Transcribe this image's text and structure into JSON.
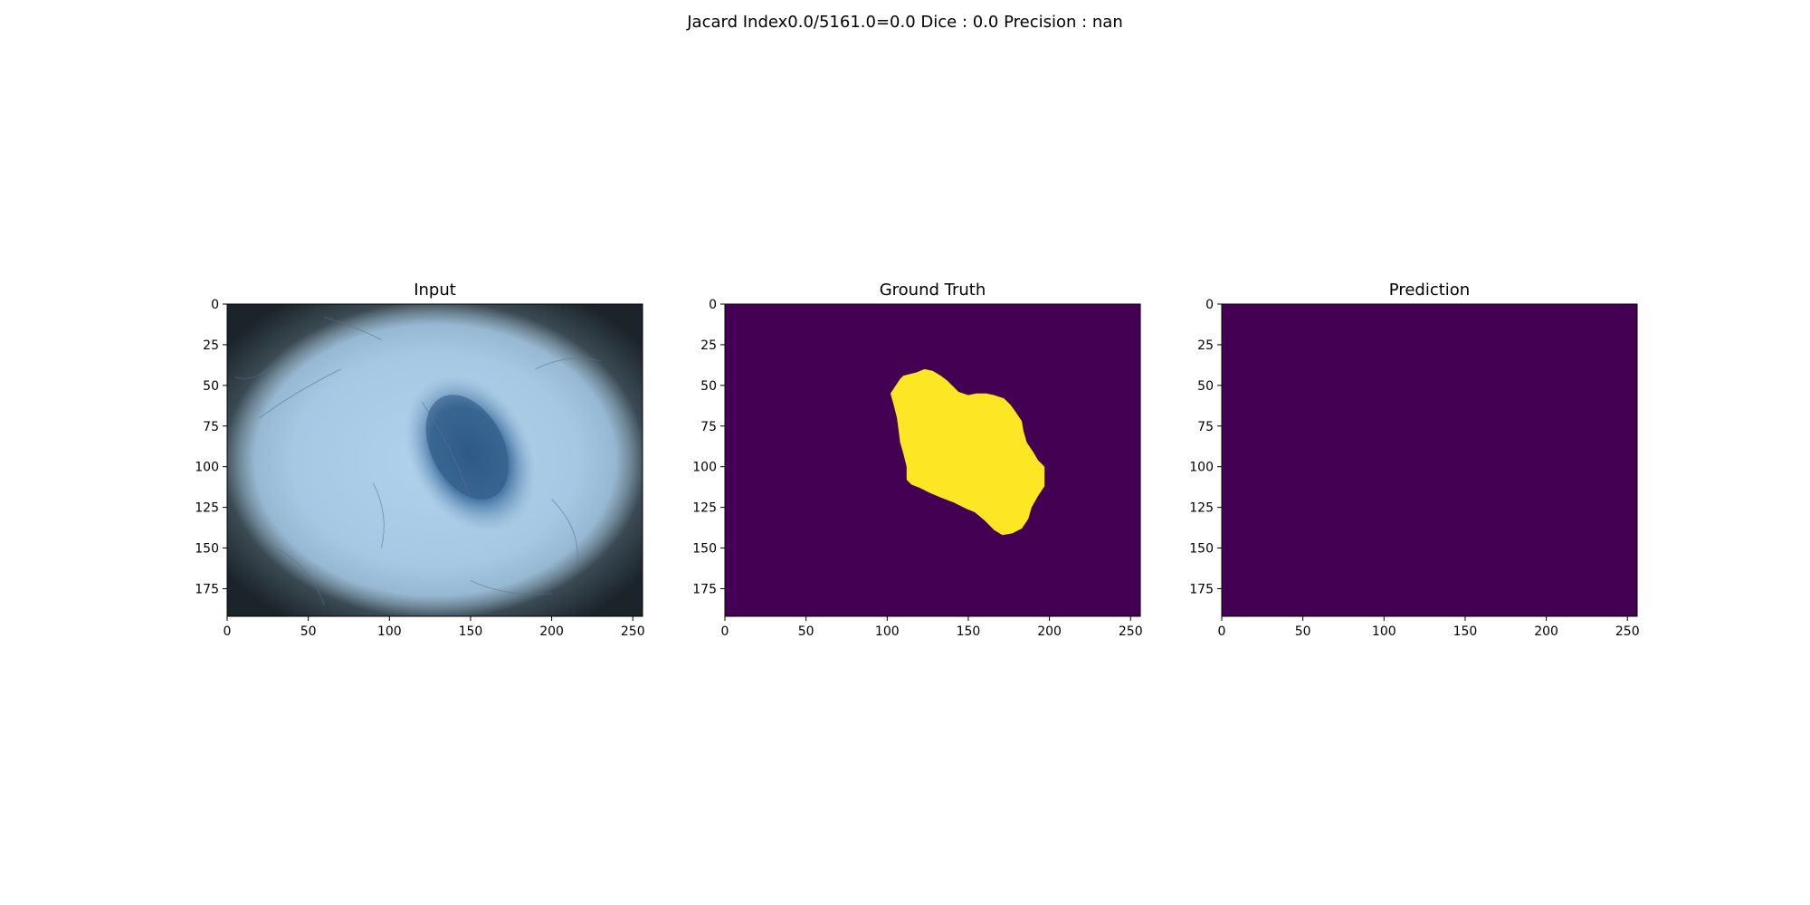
{
  "figure": {
    "suptitle": "Jacard Index0.0/5161.0=0.0 Dice : 0.0 Precision : nan"
  },
  "chart_data": [
    {
      "type": "heatmap",
      "title": "Input",
      "content": "RGB dermoscopy image: light blue skin inside circular vignette with a dark blue lesion near the center",
      "xlim": [
        0,
        256
      ],
      "ylim": [
        192,
        0
      ],
      "xticks": [
        0,
        50,
        100,
        150,
        200,
        250
      ],
      "yticks": [
        0,
        25,
        50,
        75,
        100,
        125,
        150,
        175
      ],
      "colors": {
        "skin": "#a8c9e4",
        "vignette": "#1f2a30",
        "lesion": "#2f5f8c"
      }
    },
    {
      "type": "heatmap",
      "title": "Ground Truth",
      "content": "binary mask: background 0 (purple), lesion region 1 (yellow)",
      "xlim": [
        0,
        256
      ],
      "ylim": [
        192,
        0
      ],
      "xticks": [
        0,
        50,
        100,
        150,
        200,
        250
      ],
      "yticks": [
        0,
        25,
        50,
        75,
        100,
        125,
        150,
        175
      ],
      "colors": {
        "background": "#440154",
        "foreground": "#fde725"
      },
      "mask_outline": [
        [
          108,
          46
        ],
        [
          110,
          44
        ],
        [
          118,
          42
        ],
        [
          123,
          40
        ],
        [
          128,
          41
        ],
        [
          133,
          44
        ],
        [
          137,
          47
        ],
        [
          141,
          51
        ],
        [
          144,
          54
        ],
        [
          150,
          56
        ],
        [
          155,
          55
        ],
        [
          161,
          55
        ],
        [
          166,
          56
        ],
        [
          172,
          58
        ],
        [
          176,
          62
        ],
        [
          179,
          66
        ],
        [
          183,
          72
        ],
        [
          184,
          78
        ],
        [
          186,
          85
        ],
        [
          190,
          91
        ],
        [
          193,
          96
        ],
        [
          197,
          100
        ],
        [
          197,
          112
        ],
        [
          193,
          118
        ],
        [
          189,
          125
        ],
        [
          187,
          132
        ],
        [
          183,
          138
        ],
        [
          177,
          141
        ],
        [
          171,
          142
        ],
        [
          166,
          139
        ],
        [
          160,
          133
        ],
        [
          154,
          128
        ],
        [
          149,
          126
        ],
        [
          141,
          122
        ],
        [
          133,
          119
        ],
        [
          126,
          116
        ],
        [
          120,
          113
        ],
        [
          115,
          111
        ],
        [
          112,
          108
        ],
        [
          112,
          100
        ],
        [
          110,
          92
        ],
        [
          108,
          85
        ],
        [
          107,
          77
        ],
        [
          106,
          70
        ],
        [
          104,
          62
        ],
        [
          102,
          55
        ]
      ]
    },
    {
      "type": "heatmap",
      "title": "Prediction",
      "content": "binary mask: all background (0)",
      "xlim": [
        0,
        256
      ],
      "ylim": [
        192,
        0
      ],
      "xticks": [
        0,
        50,
        100,
        150,
        200,
        250
      ],
      "yticks": [
        0,
        25,
        50,
        75,
        100,
        125,
        150,
        175
      ],
      "colors": {
        "background": "#440154"
      }
    }
  ]
}
